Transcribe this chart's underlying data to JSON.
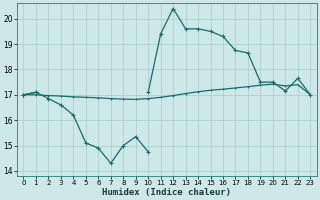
{
  "xlabel": "Humidex (Indice chaleur)",
  "bg_color": "#cce8e8",
  "grid_color": "#aacccc",
  "line_color": "#1a6b6b",
  "xlim": [
    -0.5,
    23.5
  ],
  "ylim": [
    13.8,
    20.6
  ],
  "yticks": [
    14,
    15,
    16,
    17,
    18,
    19,
    20
  ],
  "xticks": [
    0,
    1,
    2,
    3,
    4,
    5,
    6,
    7,
    8,
    9,
    10,
    11,
    12,
    13,
    14,
    15,
    16,
    17,
    18,
    19,
    20,
    21,
    22,
    23
  ],
  "series1_y": [
    17.0,
    17.1,
    16.85,
    16.6,
    16.2,
    15.1,
    14.9,
    14.3,
    15.0,
    15.35,
    14.75,
    null,
    null,
    null,
    null,
    null,
    null,
    null,
    null,
    null,
    null,
    null,
    null,
    null
  ],
  "series2_y": [
    17.0,
    17.1,
    null,
    null,
    null,
    null,
    null,
    null,
    null,
    null,
    17.1,
    19.4,
    20.4,
    19.6,
    19.6,
    19.5,
    19.3,
    18.75,
    18.65,
    17.5,
    17.5,
    17.15,
    17.65,
    17.0
  ],
  "series3_y": [
    17.0,
    17.0,
    16.97,
    16.95,
    16.92,
    16.9,
    16.88,
    16.85,
    16.83,
    16.82,
    16.85,
    16.9,
    16.97,
    17.05,
    17.12,
    17.18,
    17.22,
    17.27,
    17.32,
    17.38,
    17.42,
    17.35,
    17.4,
    17.0
  ]
}
